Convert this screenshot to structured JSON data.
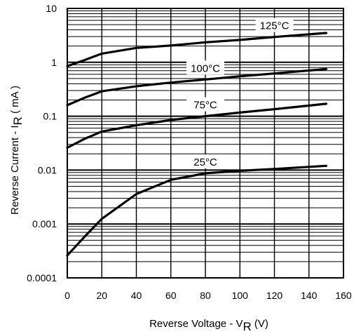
{
  "chart_data": {
    "type": "line",
    "xlabel": "Reverse Voltage - V",
    "xlabel_sub": "R",
    "xlabel_unit": " (V)",
    "ylabel": "Reverse Current - I",
    "ylabel_sub": "R",
    "ylabel_unit": " ( mA )",
    "x_scale": "linear",
    "y_scale": "log",
    "xlim": [
      0,
      160
    ],
    "ylim": [
      0.0001,
      10
    ],
    "x_ticks": [
      0,
      20,
      40,
      60,
      80,
      100,
      120,
      140,
      160
    ],
    "x_tick_labels": [
      "0",
      "20",
      "40",
      "60",
      "80",
      "100",
      "120",
      "140",
      "160"
    ],
    "y_ticks": [
      0.0001,
      0.001,
      0.01,
      0.1,
      1,
      10
    ],
    "y_tick_labels": [
      "0.0001",
      "0.001",
      "0.01",
      "0.1",
      "1",
      "10"
    ],
    "grid": true,
    "series": [
      {
        "name": "125°C",
        "label_x": 120,
        "x": [
          0,
          10,
          20,
          40,
          60,
          80,
          100,
          120,
          150
        ],
        "y": [
          0.85,
          1.1,
          1.45,
          1.85,
          2.05,
          2.35,
          2.6,
          2.95,
          3.5
        ]
      },
      {
        "name": "100°C",
        "label_x": 80,
        "x": [
          0,
          10,
          20,
          40,
          60,
          80,
          100,
          120,
          150
        ],
        "y": [
          0.16,
          0.22,
          0.29,
          0.36,
          0.42,
          0.48,
          0.55,
          0.62,
          0.75
        ]
      },
      {
        "name": "75°C",
        "label_x": 80,
        "x": [
          0,
          10,
          20,
          40,
          60,
          80,
          100,
          120,
          150
        ],
        "y": [
          0.026,
          0.038,
          0.052,
          0.068,
          0.085,
          0.1,
          0.117,
          0.135,
          0.17
        ]
      },
      {
        "name": "25°C",
        "label_x": 80,
        "x": [
          0,
          10,
          20,
          40,
          60,
          80,
          100,
          120,
          150
        ],
        "y": [
          0.00026,
          0.00058,
          0.00125,
          0.0036,
          0.0066,
          0.0087,
          0.0097,
          0.0105,
          0.012
        ]
      }
    ]
  }
}
